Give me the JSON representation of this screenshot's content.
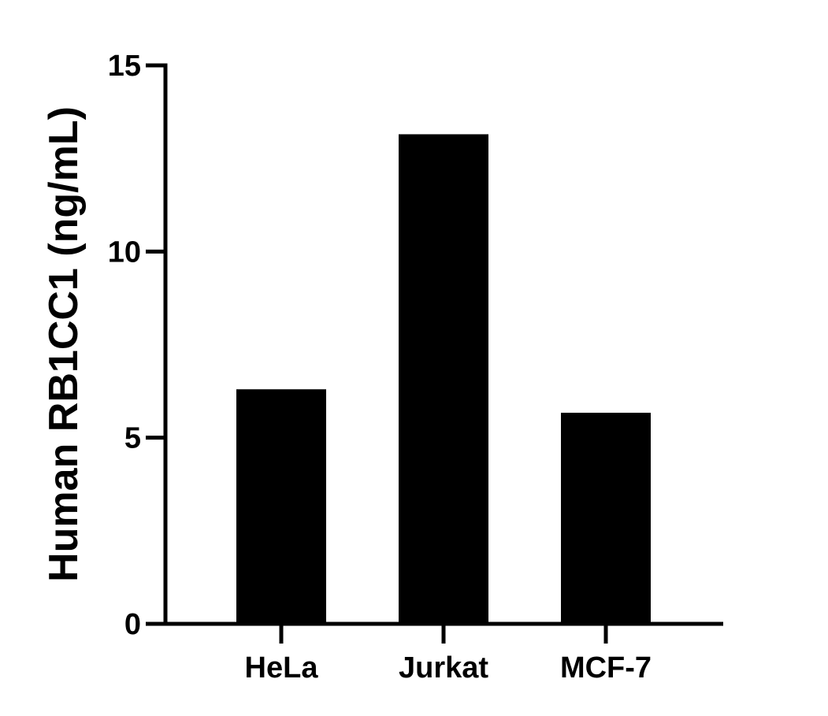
{
  "chart_data": {
    "type": "bar",
    "title": "",
    "xlabel": "",
    "ylabel": "Human RB1CC1 (ng/mL)",
    "categories": [
      "HeLa",
      "Jurkat",
      "MCF-7"
    ],
    "values": [
      6.3,
      13.15,
      5.67
    ],
    "ylim": [
      0,
      15
    ],
    "yticks": [
      0,
      5,
      10,
      15
    ],
    "grid": false,
    "legend": "none",
    "bar_color": "#000000",
    "axis_color": "#000000"
  }
}
